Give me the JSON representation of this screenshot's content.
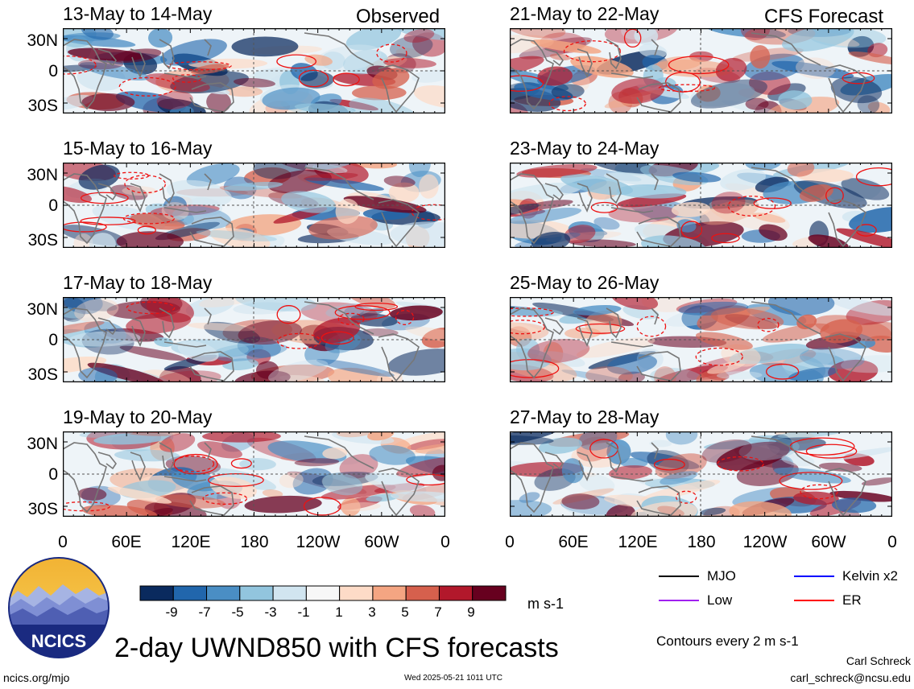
{
  "header": {
    "observed_label": "Observed",
    "forecast_label": "CFS Forecast"
  },
  "panels": [
    {
      "date": "13-May to 14-May",
      "column": "observed"
    },
    {
      "date": "15-May to 16-May",
      "column": "observed"
    },
    {
      "date": "17-May to 18-May",
      "column": "observed"
    },
    {
      "date": "19-May to 20-May",
      "column": "observed"
    },
    {
      "date": "21-May to 22-May",
      "column": "forecast"
    },
    {
      "date": "23-May to 24-May",
      "column": "forecast"
    },
    {
      "date": "25-May to 26-May",
      "column": "forecast"
    },
    {
      "date": "27-May to 28-May",
      "column": "forecast"
    }
  ],
  "axes": {
    "lat_ticks": [
      "30N",
      "0",
      "30S"
    ],
    "lon_ticks": [
      "0",
      "60E",
      "120E",
      "180",
      "120W",
      "60W",
      "0"
    ]
  },
  "colorbar": {
    "colors": [
      "#0a2a5e",
      "#2166ac",
      "#4a8ec4",
      "#92c5de",
      "#d1e5f0",
      "#f7f7f7",
      "#fddbc7",
      "#f4a582",
      "#d6604d",
      "#b2182b",
      "#67001f"
    ],
    "labels": [
      "-9",
      "-7",
      "-5",
      "-3",
      "-1",
      "1",
      "3",
      "5",
      "7",
      "9"
    ],
    "units": "m s-1"
  },
  "legend": {
    "items": [
      {
        "label": "MJO",
        "color": "#000000"
      },
      {
        "label": "Kelvin x2",
        "color": "#0000ff"
      },
      {
        "label": "Low",
        "color": "#a020f0"
      },
      {
        "label": "ER",
        "color": "#ff0000"
      }
    ],
    "note": "Contours every 2 m s-1"
  },
  "logo": {
    "text": "NCICS"
  },
  "footer": {
    "title": "2-day UWND850 with CFS forecasts",
    "url": "ncics.org/mjo",
    "timestamp": "Wed 2025-05-21 1011 UTC",
    "author": "Carl Schreck",
    "email": "carl_schreck@ncsu.edu"
  },
  "chart_data": {
    "type": "heatmap",
    "variable": "UWND850",
    "units": "m s-1",
    "lat_range": [
      "40S",
      "40N"
    ],
    "lon_range": [
      "0",
      "0"
    ],
    "color_levels": [
      -9,
      -7,
      -5,
      -3,
      -1,
      1,
      3,
      5,
      7,
      9
    ],
    "contour_interval": 2,
    "contour_filters": [
      "MJO",
      "Kelvin x2",
      "Low",
      "ER"
    ],
    "panels": [
      {
        "date": "13-May to 14-May",
        "source": "Observed"
      },
      {
        "date": "15-May to 16-May",
        "source": "Observed"
      },
      {
        "date": "17-May to 18-May",
        "source": "Observed"
      },
      {
        "date": "19-May to 20-May",
        "source": "Observed"
      },
      {
        "date": "21-May to 22-May",
        "source": "CFS Forecast"
      },
      {
        "date": "23-May to 24-May",
        "source": "CFS Forecast"
      },
      {
        "date": "25-May to 26-May",
        "source": "CFS Forecast"
      },
      {
        "date": "27-May to 28-May",
        "source": "CFS Forecast"
      }
    ]
  }
}
